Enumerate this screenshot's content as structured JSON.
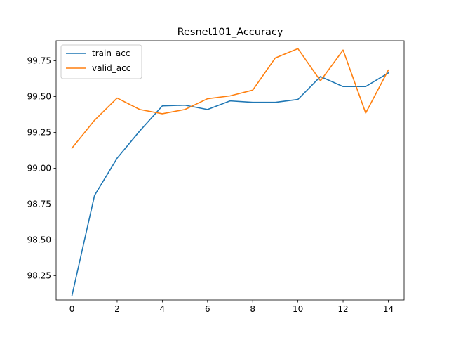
{
  "chart_data": {
    "type": "line",
    "title": "Resnet101_Accuracy",
    "xlabel": "",
    "ylabel": "",
    "x": [
      0,
      1,
      2,
      3,
      4,
      5,
      6,
      7,
      8,
      9,
      10,
      11,
      12,
      13,
      14
    ],
    "xlim": [
      -0.7,
      14.7
    ],
    "ylim": [
      98.08,
      99.89
    ],
    "xticks": [
      0,
      2,
      4,
      6,
      8,
      10,
      12,
      14
    ],
    "xtick_labels": [
      "0",
      "2",
      "4",
      "6",
      "8",
      "10",
      "12",
      "14"
    ],
    "yticks": [
      98.25,
      98.5,
      98.75,
      99.0,
      99.25,
      99.5,
      99.75
    ],
    "ytick_labels": [
      "98.25",
      "98.50",
      "98.75",
      "99.00",
      "99.25",
      "99.50",
      "99.75"
    ],
    "grid": false,
    "legend_position": "upper-left",
    "series": [
      {
        "name": "train_acc",
        "color": "#1f77b4",
        "values": [
          98.11,
          98.81,
          99.07,
          99.26,
          99.435,
          99.44,
          99.41,
          99.47,
          99.46,
          99.46,
          99.48,
          99.64,
          99.57,
          99.57,
          99.665
        ]
      },
      {
        "name": "valid_acc",
        "color": "#ff7f0e",
        "values": [
          99.14,
          99.335,
          99.49,
          99.41,
          99.38,
          99.41,
          99.485,
          99.505,
          99.545,
          99.77,
          99.835,
          99.61,
          99.825,
          99.385,
          99.685
        ]
      }
    ]
  }
}
